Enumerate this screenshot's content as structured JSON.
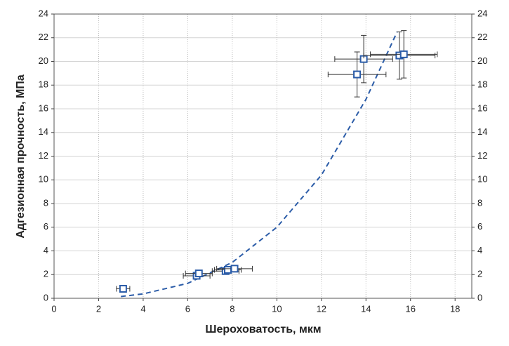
{
  "chart_data": {
    "type": "scatter",
    "xlabel": "Шероховатость, мкм",
    "ylabel": "Адгезионная прочность, МПа",
    "xlim": [
      0,
      18.75
    ],
    "ylim": [
      0,
      24
    ],
    "y2lim": [
      0,
      24
    ],
    "xticks": [
      0,
      2,
      4,
      6,
      8,
      10,
      12,
      14,
      16,
      18
    ],
    "yticks": [
      0,
      2,
      4,
      6,
      8,
      10,
      12,
      14,
      16,
      18,
      20,
      22,
      24
    ],
    "y2ticks": [
      0,
      2,
      4,
      6,
      8,
      10,
      12,
      14,
      16,
      18,
      20,
      22,
      24
    ],
    "grid": true,
    "series": [
      {
        "color": "#2b5ca8",
        "x": [
          3.1,
          6.4,
          6.5,
          7.7,
          7.8,
          8.1,
          13.6,
          13.9,
          15.5,
          15.7
        ],
        "values": [
          0.8,
          1.9,
          2.1,
          2.3,
          2.4,
          2.5,
          18.9,
          20.2,
          20.5,
          20.6
        ],
        "xerr": [
          0.3,
          0.6,
          0.6,
          0.6,
          0.6,
          0.8,
          1.3,
          1.3,
          1.6,
          1.5
        ],
        "yerr": [
          0.2,
          0.2,
          0.2,
          0.2,
          0.2,
          0.2,
          1.9,
          2.0,
          2.0,
          2.0
        ]
      }
    ],
    "trend": {
      "color": "#2b5ca8",
      "style": "dashed",
      "x": [
        3,
        4,
        6,
        8,
        10,
        12,
        14,
        15.4
      ],
      "values": [
        0.15,
        0.37,
        1.26,
        3.03,
        6,
        10.4,
        16.8,
        22.5
      ]
    }
  }
}
